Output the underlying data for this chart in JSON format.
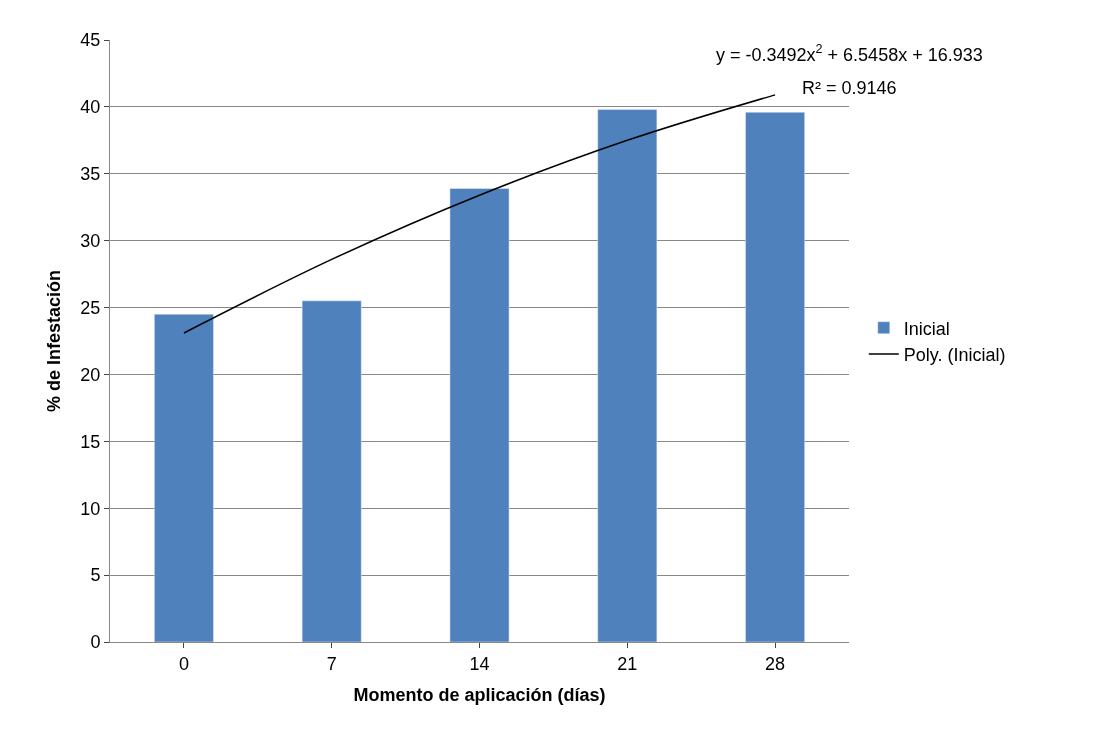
{
  "chart_data": {
    "type": "bar",
    "xlabel": "Momento de aplicación (días)",
    "ylabel": "% de Infestación",
    "categories": [
      "0",
      "7",
      "14",
      "21",
      "28"
    ],
    "series": [
      {
        "name": "Inicial",
        "color": "#4f81bd",
        "values": [
          24.5,
          25.5,
          33.9,
          39.8,
          39.6
        ]
      },
      {
        "name": "Poly. (Inicial)",
        "type": "line",
        "color": "#000000",
        "x": [
          "0",
          "7",
          "14",
          "21",
          "28"
        ],
        "values": [
          23.1,
          28.6,
          33.4,
          37.5,
          40.9
        ]
      }
    ],
    "ylim": [
      0,
      45
    ],
    "yticks": [
      0,
      5,
      10,
      15,
      20,
      25,
      30,
      35,
      40,
      45
    ],
    "grid": "y",
    "legend": "right",
    "marker": "none",
    "line_style": "solid",
    "annotations": [
      "y = -0.3492x$^{2}$ + 6.5458x + 16.933",
      "R² = 0.9146"
    ]
  }
}
